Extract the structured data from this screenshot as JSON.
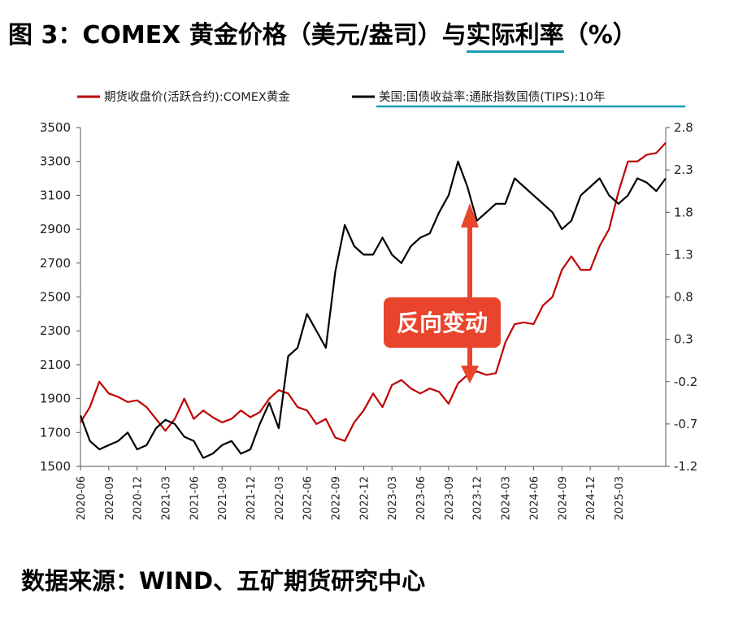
{
  "figure": {
    "title_prefix": "图 3：COMEX 黄金价格（美元/盎司）与",
    "title_underlined": "实际利率",
    "title_suffix": "（%）",
    "source": "数据来源：WIND、五矿期货研究中心"
  },
  "chart_data": {
    "type": "line",
    "legend": [
      {
        "name": "期货收盘价(活跃合约):COMEX黄金",
        "color": "#c00000",
        "axis": "left"
      },
      {
        "name": "美国:国债收益率:通胀指数国债(TIPS):10年",
        "color": "#000000",
        "axis": "right"
      }
    ],
    "legend_placement": "top",
    "left_axis": {
      "ylim": [
        1500,
        3500
      ],
      "ticks": [
        1500,
        1700,
        1900,
        2100,
        2300,
        2500,
        2700,
        2900,
        3100,
        3300,
        3500
      ]
    },
    "right_axis": {
      "ylim": [
        -1.2,
        2.8
      ],
      "ticks": [
        "-1.2",
        "-0.7",
        "-0.2",
        "0.3",
        "0.8",
        "1.3",
        "1.8",
        "2.3",
        "2.8"
      ]
    },
    "x_axis": {
      "range": [
        "2020-06",
        "2025-08"
      ],
      "ticks": [
        "2020-06",
        "2020-09",
        "2020-12",
        "2021-03",
        "2021-06",
        "2021-09",
        "2021-12",
        "2022-03",
        "2022-06",
        "2022-09",
        "2022-12",
        "2023-03",
        "2023-06",
        "2023-09",
        "2023-12",
        "2024-03",
        "2024-06",
        "2024-09",
        "2024-12",
        "2025-03"
      ]
    },
    "grid": false,
    "annotation": {
      "text": "反向变动",
      "color": "#e8452c"
    },
    "series": [
      {
        "name": "期货收盘价(活跃合约):COMEX黄金",
        "axis": "left",
        "x": [
          "2020-06",
          "2020-07",
          "2020-08",
          "2020-09",
          "2020-10",
          "2020-11",
          "2020-12",
          "2021-01",
          "2021-02",
          "2021-03",
          "2021-04",
          "2021-05",
          "2021-06",
          "2021-07",
          "2021-08",
          "2021-09",
          "2021-10",
          "2021-11",
          "2021-12",
          "2022-01",
          "2022-02",
          "2022-03",
          "2022-04",
          "2022-05",
          "2022-06",
          "2022-07",
          "2022-08",
          "2022-09",
          "2022-10",
          "2022-11",
          "2022-12",
          "2023-01",
          "2023-02",
          "2023-03",
          "2023-04",
          "2023-05",
          "2023-06",
          "2023-07",
          "2023-08",
          "2023-09",
          "2023-10",
          "2023-11",
          "2023-12",
          "2024-01",
          "2024-02",
          "2024-03",
          "2024-04",
          "2024-05",
          "2024-06",
          "2024-07",
          "2024-08",
          "2024-09",
          "2024-10",
          "2024-11",
          "2024-12",
          "2025-01",
          "2025-02",
          "2025-03",
          "2025-04",
          "2025-05",
          "2025-06",
          "2025-07",
          "2025-08"
        ],
        "values": [
          1760,
          1850,
          2000,
          1930,
          1910,
          1880,
          1890,
          1850,
          1780,
          1710,
          1780,
          1900,
          1780,
          1830,
          1790,
          1760,
          1780,
          1830,
          1790,
          1820,
          1900,
          1950,
          1930,
          1850,
          1830,
          1750,
          1780,
          1670,
          1650,
          1760,
          1830,
          1930,
          1850,
          1980,
          2010,
          1960,
          1930,
          1960,
          1940,
          1870,
          1990,
          2040,
          2060,
          2040,
          2050,
          2230,
          2340,
          2350,
          2340,
          2450,
          2500,
          2660,
          2740,
          2660,
          2660,
          2800,
          2900,
          3120,
          3300,
          3300,
          3340,
          3350,
          3410
        ]
      },
      {
        "name": "美国:国债收益率:通胀指数国债(TIPS):10年",
        "axis": "right",
        "x": [
          "2020-06",
          "2020-07",
          "2020-08",
          "2020-09",
          "2020-10",
          "2020-11",
          "2020-12",
          "2021-01",
          "2021-02",
          "2021-03",
          "2021-04",
          "2021-05",
          "2021-06",
          "2021-07",
          "2021-08",
          "2021-09",
          "2021-10",
          "2021-11",
          "2021-12",
          "2022-01",
          "2022-02",
          "2022-03",
          "2022-04",
          "2022-05",
          "2022-06",
          "2022-07",
          "2022-08",
          "2022-09",
          "2022-10",
          "2022-11",
          "2022-12",
          "2023-01",
          "2023-02",
          "2023-03",
          "2023-04",
          "2023-05",
          "2023-06",
          "2023-07",
          "2023-08",
          "2023-09",
          "2023-10",
          "2023-11",
          "2023-12",
          "2024-01",
          "2024-02",
          "2024-03",
          "2024-04",
          "2024-05",
          "2024-06",
          "2024-07",
          "2024-08",
          "2024-09",
          "2024-10",
          "2024-11",
          "2024-12",
          "2025-01",
          "2025-02",
          "2025-03",
          "2025-04",
          "2025-05",
          "2025-06",
          "2025-07",
          "2025-08"
        ],
        "values": [
          -0.6,
          -0.9,
          -1.0,
          -0.95,
          -0.9,
          -0.8,
          -1.0,
          -0.95,
          -0.75,
          -0.65,
          -0.7,
          -0.85,
          -0.9,
          -1.1,
          -1.05,
          -0.95,
          -0.9,
          -1.05,
          -1.0,
          -0.7,
          -0.45,
          -0.75,
          0.1,
          0.2,
          0.6,
          0.4,
          0.2,
          1.1,
          1.65,
          1.4,
          1.3,
          1.3,
          1.5,
          1.3,
          1.2,
          1.4,
          1.5,
          1.55,
          1.8,
          2.0,
          2.4,
          2.1,
          1.7,
          1.8,
          1.9,
          1.9,
          2.2,
          2.1,
          2.0,
          1.9,
          1.8,
          1.6,
          1.7,
          2.0,
          2.1,
          2.2,
          2.0,
          1.9,
          2.0,
          2.2,
          2.15,
          2.05,
          2.2
        ]
      }
    ]
  }
}
